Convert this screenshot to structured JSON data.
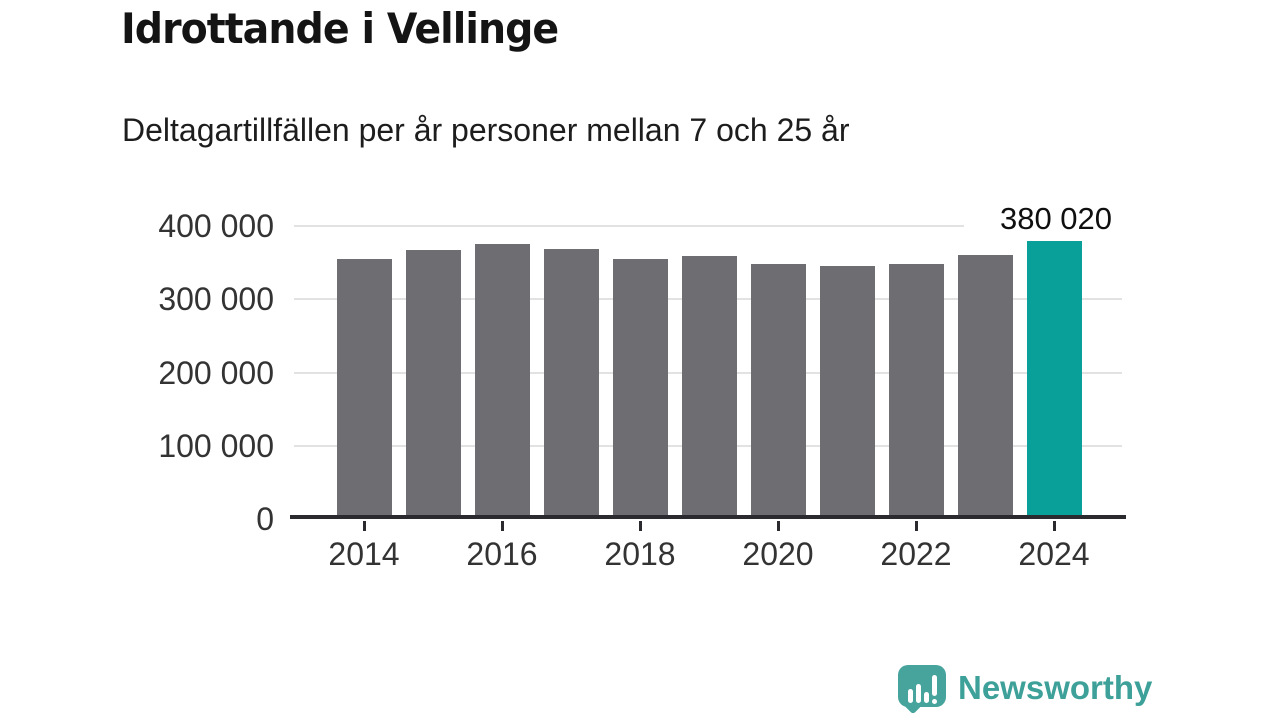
{
  "header": {
    "title": "Idrottande i Vellinge",
    "subtitle": "Deltagartillfällen per år personer mellan 7 och 25 år"
  },
  "chart_data": {
    "type": "bar",
    "title": "Idrottande i Vellinge",
    "subtitle": "Deltagartillfällen per år personer mellan 7 och 25 år",
    "categories": [
      2014,
      2015,
      2016,
      2017,
      2018,
      2019,
      2020,
      2021,
      2022,
      2023,
      2024
    ],
    "values": [
      355000,
      367000,
      375000,
      369000,
      355000,
      359000,
      348000,
      346000,
      348000,
      360000,
      380020
    ],
    "highlight_index": 10,
    "highlight_value": 380020,
    "annotation_label": "380 020",
    "ylim": [
      0,
      400000
    ],
    "yticks": [
      {
        "value": 0,
        "label": "0"
      },
      {
        "value": 100000,
        "label": "100 000"
      },
      {
        "value": 200000,
        "label": "200 000"
      },
      {
        "value": 300000,
        "label": "300 000"
      },
      {
        "value": 400000,
        "label": "400 000"
      }
    ],
    "xticks": [
      2014,
      2016,
      2018,
      2020,
      2022,
      2024
    ],
    "grid": true,
    "legend": "none",
    "colors": {
      "bar": "#6e6d72",
      "highlight": "#0aa09a",
      "gridline": "#e2e2e2",
      "axis": "#2b2a2e",
      "tick_text": "#333333",
      "annotation_text": "#0f0f0f"
    }
  },
  "branding": {
    "name": "Newsworthy",
    "icon": "newsworthy-logo-icon",
    "icon_color": "#47a49c",
    "text_color": "#3da099"
  }
}
